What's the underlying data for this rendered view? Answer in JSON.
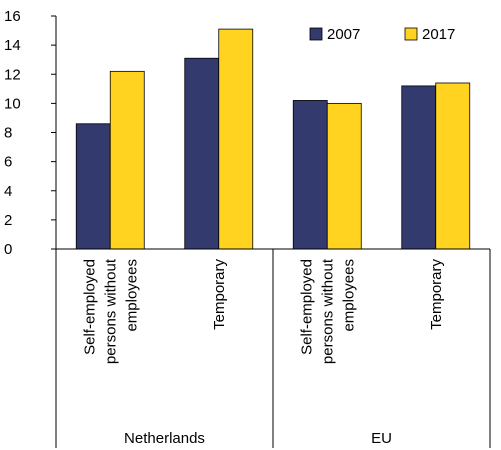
{
  "chart_data": {
    "type": "bar",
    "title": "",
    "xlabel": "",
    "ylabel": "",
    "ylim": [
      0,
      16
    ],
    "yticks": [
      0,
      2,
      4,
      6,
      8,
      10,
      12,
      14,
      16
    ],
    "categories": [
      {
        "group": "Netherlands",
        "lines": [
          "Self-employed",
          "persons without",
          "employees"
        ]
      },
      {
        "group": "Netherlands",
        "lines": [
          "Temporary"
        ]
      },
      {
        "group": "EU",
        "lines": [
          "Self-employed",
          "persons without",
          "employees"
        ]
      },
      {
        "group": "EU",
        "lines": [
          "Temporary"
        ]
      }
    ],
    "groups": [
      "Netherlands",
      "EU"
    ],
    "series": [
      {
        "name": "2007",
        "color": "#333a6e",
        "values": [
          8.6,
          13.1,
          10.2,
          11.2
        ]
      },
      {
        "name": "2017",
        "color": "#ffd320",
        "values": [
          12.2,
          15.1,
          10.0,
          11.4
        ]
      }
    ],
    "legend": {
      "position": "top-right"
    },
    "grid": false
  }
}
